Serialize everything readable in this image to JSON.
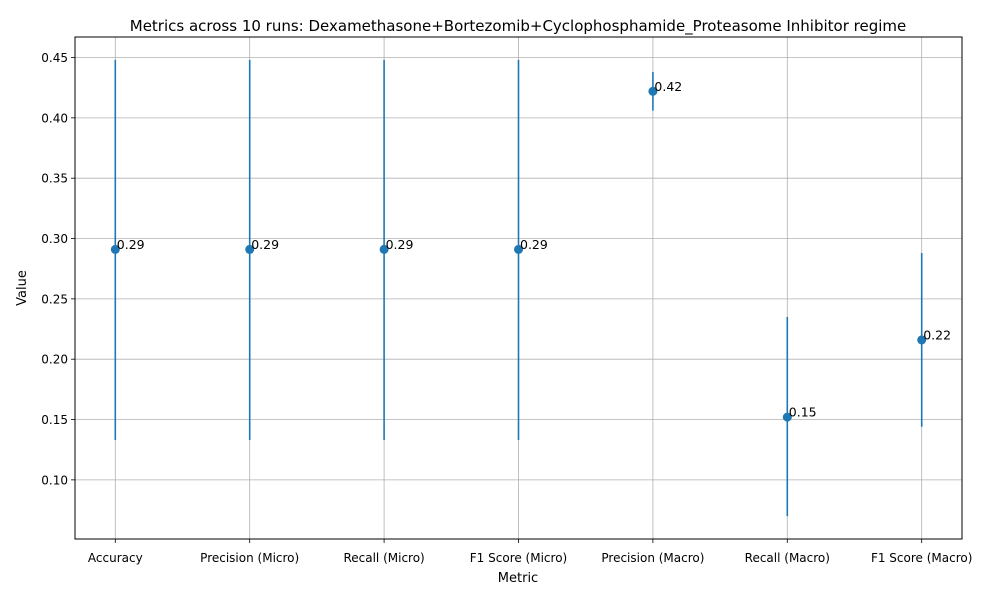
{
  "chart_data": {
    "type": "scatter",
    "title": "Metrics across 10 runs: Dexamethasone+Bortezomib+Cyclophosphamide_Proteasome Inhibitor regime",
    "xlabel": "Metric",
    "ylabel": "Value",
    "categories": [
      "Accuracy",
      "Precision (Micro)",
      "Recall (Micro)",
      "F1 Score (Micro)",
      "Precision (Macro)",
      "Recall (Macro)",
      "F1 Score (Macro)"
    ],
    "values": [
      0.291,
      0.291,
      0.291,
      0.291,
      0.422,
      0.152,
      0.216
    ],
    "error_low": [
      0.133,
      0.133,
      0.133,
      0.133,
      0.406,
      0.07,
      0.144
    ],
    "error_high": [
      0.448,
      0.448,
      0.448,
      0.448,
      0.438,
      0.235,
      0.288
    ],
    "data_labels": [
      "0.29",
      "0.29",
      "0.29",
      "0.29",
      "0.42",
      "0.15",
      "0.22"
    ],
    "yticks": [
      "0.10",
      "0.15",
      "0.20",
      "0.25",
      "0.30",
      "0.35",
      "0.40",
      "0.45"
    ],
    "ylim": [
      0.051,
      0.467
    ],
    "grid": true,
    "series_color": "#1f77b4"
  }
}
